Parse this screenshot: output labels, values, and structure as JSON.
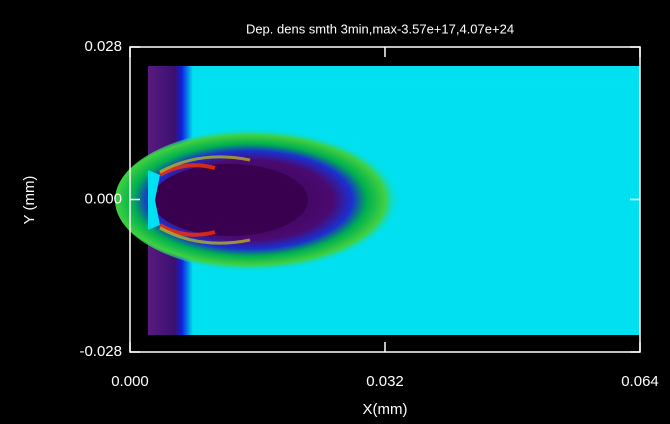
{
  "chart_data": {
    "type": "heatmap",
    "title": "Dep. dens smth 3min,max-3.57e+17,4.07e+24",
    "x_label": "X(mm)",
    "y_label": "Y (mm)",
    "xlim": [
      0,
      0.064
    ],
    "xticks": [
      {
        "value": 0,
        "label": "0.000"
      },
      0.032,
      0.064
    ],
    "ylim": [
      -0.028,
      0.028
    ],
    "yticks": [
      -0.028,
      {
        "value": 0,
        "label": "0.000"
      },
      0.028
    ]
  }
}
